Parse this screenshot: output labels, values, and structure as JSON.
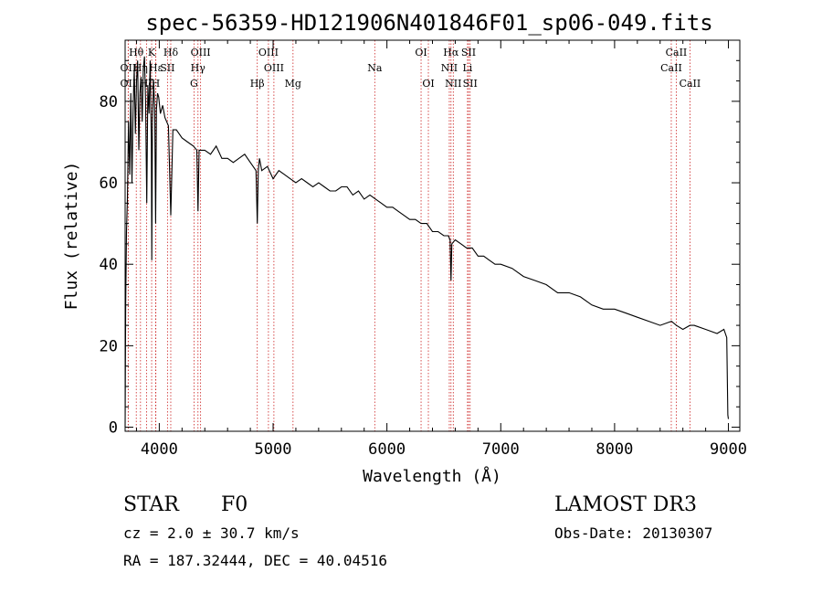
{
  "chart_data": {
    "type": "line",
    "title": "spec-56359-HD121906N401846F01_sp06-049.fits",
    "xlabel": "Wavelength (Å)",
    "ylabel": "Flux (relative)",
    "xlim": [
      3700,
      9100
    ],
    "ylim": [
      -1,
      95
    ],
    "xticks": [
      4000,
      5000,
      6000,
      7000,
      8000,
      9000
    ],
    "yticks": [
      0,
      20,
      40,
      60,
      80
    ],
    "grid": false,
    "series": [
      {
        "name": "flux",
        "x": [
          3700,
          3705,
          3712,
          3720,
          3730,
          3740,
          3750,
          3760,
          3770,
          3780,
          3790,
          3800,
          3810,
          3820,
          3830,
          3840,
          3850,
          3860,
          3870,
          3880,
          3890,
          3900,
          3910,
          3920,
          3930,
          3934,
          3940,
          3950,
          3960,
          3968,
          3975,
          3985,
          3995,
          4010,
          4030,
          4050,
          4080,
          4101,
          4120,
          4150,
          4200,
          4250,
          4300,
          4330,
          4340,
          4350,
          4380,
          4400,
          4450,
          4500,
          4550,
          4600,
          4650,
          4700,
          4750,
          4800,
          4850,
          4861,
          4870,
          4880,
          4900,
          4950,
          5000,
          5050,
          5100,
          5150,
          5200,
          5250,
          5300,
          5350,
          5400,
          5450,
          5500,
          5550,
          5600,
          5650,
          5700,
          5750,
          5800,
          5850,
          5900,
          5950,
          6000,
          6050,
          6100,
          6150,
          6200,
          6250,
          6300,
          6350,
          6400,
          6450,
          6500,
          6540,
          6555,
          6563,
          6570,
          6600,
          6650,
          6700,
          6750,
          6800,
          6850,
          6900,
          6950,
          7000,
          7100,
          7200,
          7300,
          7400,
          7500,
          7600,
          7700,
          7800,
          7900,
          8000,
          8100,
          8200,
          8300,
          8400,
          8500,
          8542,
          8600,
          8662,
          8700,
          8800,
          8900,
          8960,
          8985,
          8995,
          9000
        ],
        "y": [
          0,
          30,
          48,
          56,
          75,
          62,
          82,
          60,
          78,
          88,
          72,
          85,
          90,
          68,
          82,
          86,
          75,
          88,
          91,
          80,
          55,
          84,
          77,
          90,
          70,
          41,
          75,
          85,
          78,
          50,
          78,
          82,
          81,
          77,
          79,
          76,
          74,
          52,
          73,
          73,
          71,
          70,
          69,
          68,
          53,
          68,
          68,
          68,
          67,
          69,
          66,
          66,
          65,
          66,
          67,
          65,
          63,
          50,
          63,
          66,
          63,
          64,
          61,
          63,
          62,
          61,
          60,
          61,
          60,
          59,
          60,
          59,
          58,
          58,
          59,
          59,
          57,
          58,
          56,
          57,
          56,
          55,
          54,
          54,
          53,
          52,
          51,
          51,
          50,
          50,
          48,
          48,
          47,
          47,
          46,
          36,
          45,
          46,
          45,
          44,
          44,
          42,
          42,
          41,
          40,
          40,
          39,
          37,
          36,
          35,
          33,
          33,
          32,
          30,
          29,
          29,
          28,
          27,
          26,
          25,
          26,
          25,
          24,
          25,
          25,
          24,
          23,
          24,
          22,
          3,
          2
        ]
      }
    ],
    "lines": [
      {
        "label": "OII",
        "x": 3727,
        "row": 2
      },
      {
        "label": "OII",
        "x": 3727,
        "row": 3
      },
      {
        "label": "Hθ",
        "x": 3798,
        "row": 1
      },
      {
        "label": "Hη",
        "x": 3835,
        "row": 2
      },
      {
        "label": "Hζ",
        "x": 3889,
        "row": 3
      },
      {
        "label": "K",
        "x": 3933,
        "row": 1
      },
      {
        "label": "Hε",
        "x": 3970,
        "row": 2
      },
      {
        "label": "H",
        "x": 3968,
        "row": 3
      },
      {
        "label": "SII",
        "x": 4072,
        "row": 2
      },
      {
        "label": "Hδ",
        "x": 4101,
        "row": 1
      },
      {
        "label": "OIII",
        "x": 4363,
        "row": 1
      },
      {
        "label": "Hγ",
        "x": 4340,
        "row": 2
      },
      {
        "label": "G",
        "x": 4305,
        "row": 3
      },
      {
        "label": "OIII",
        "x": 4959,
        "row": 1
      },
      {
        "label": "OIII",
        "x": 5007,
        "row": 2
      },
      {
        "label": "Hβ",
        "x": 4861,
        "row": 3
      },
      {
        "label": "Mg",
        "x": 5175,
        "row": 3
      },
      {
        "label": "Na",
        "x": 5893,
        "row": 2
      },
      {
        "label": "OI",
        "x": 6300,
        "row": 1
      },
      {
        "label": "OI",
        "x": 6364,
        "row": 3
      },
      {
        "label": "Hα",
        "x": 6563,
        "row": 1
      },
      {
        "label": "NII",
        "x": 6548,
        "row": 2
      },
      {
        "label": "NII",
        "x": 6583,
        "row": 3
      },
      {
        "label": "SII",
        "x": 6717,
        "row": 1
      },
      {
        "label": "Li",
        "x": 6708,
        "row": 2
      },
      {
        "label": "SII",
        "x": 6731,
        "row": 3
      },
      {
        "label": "CaII",
        "x": 8542,
        "row": 1
      },
      {
        "label": "CaII",
        "x": 8498,
        "row": 2
      },
      {
        "label": "CaII",
        "x": 8662,
        "row": 3
      }
    ]
  },
  "info": {
    "object_class": "STAR",
    "subclass": "F0",
    "survey": "LAMOST DR3",
    "cz": "cz = 2.0 ± 30.7 km/s",
    "obs_date": "Obs-Date: 20130307",
    "coords": "RA = 187.32444, DEC =  40.04516"
  }
}
